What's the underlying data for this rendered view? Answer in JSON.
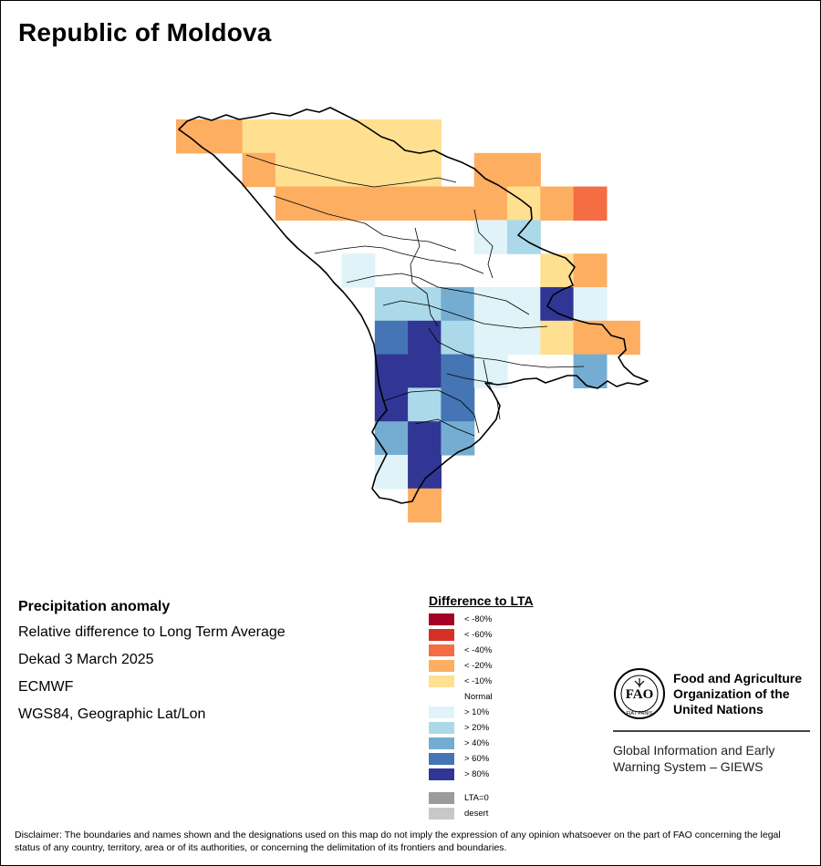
{
  "title": "Republic of Moldova",
  "info": {
    "heading": "Precipitation anomaly",
    "line1": "Relative difference to Long Term Average",
    "line2": "Dekad 3 March 2025",
    "line3": "ECMWF",
    "line4": "WGS84, Geographic Lat/Lon"
  },
  "legend": {
    "title": "Difference to LTA",
    "items": [
      {
        "label": "< -80%",
        "color": "#a50026"
      },
      {
        "label": "< -60%",
        "color": "#d73027"
      },
      {
        "label": "< -40%",
        "color": "#f46d43"
      },
      {
        "label": "< -20%",
        "color": "#fdae61"
      },
      {
        "label": "< -10%",
        "color": "#fee090"
      },
      {
        "label": "Normal",
        "color": "#ffffff"
      },
      {
        "label": "> 10%",
        "color": "#e0f3f8"
      },
      {
        "label": "> 20%",
        "color": "#abd9e9"
      },
      {
        "label": "> 40%",
        "color": "#74add1"
      },
      {
        "label": "> 60%",
        "color": "#4575b4"
      },
      {
        "label": "> 80%",
        "color": "#313695"
      }
    ],
    "extra": [
      {
        "label": "LTA=0",
        "color": "#9b9b9b"
      },
      {
        "label": "desert",
        "color": "#c8c8c8"
      }
    ]
  },
  "map_cells": [
    {
      "row": 0,
      "col": 0,
      "value": "< -20%"
    },
    {
      "row": 0,
      "col": 1,
      "value": "< -20%"
    },
    {
      "row": 0,
      "col": 2,
      "value": "< -10%"
    },
    {
      "row": 0,
      "col": 3,
      "value": "< -10%"
    },
    {
      "row": 0,
      "col": 4,
      "value": "< -10%"
    },
    {
      "row": 0,
      "col": 5,
      "value": "< -10%"
    },
    {
      "row": 0,
      "col": 6,
      "value": "< -10%"
    },
    {
      "row": 0,
      "col": 7,
      "value": "< -10%"
    },
    {
      "row": 1,
      "col": 2,
      "value": "< -20%"
    },
    {
      "row": 1,
      "col": 3,
      "value": "< -10%"
    },
    {
      "row": 1,
      "col": 4,
      "value": "< -10%"
    },
    {
      "row": 1,
      "col": 5,
      "value": "< -10%"
    },
    {
      "row": 1,
      "col": 6,
      "value": "< -10%"
    },
    {
      "row": 1,
      "col": 7,
      "value": "< -10%"
    },
    {
      "row": 1,
      "col": 9,
      "value": "< -20%"
    },
    {
      "row": 1,
      "col": 10,
      "value": "< -20%"
    },
    {
      "row": 2,
      "col": 3,
      "value": "< -20%"
    },
    {
      "row": 2,
      "col": 4,
      "value": "< -20%"
    },
    {
      "row": 2,
      "col": 5,
      "value": "< -20%"
    },
    {
      "row": 2,
      "col": 6,
      "value": "< -20%"
    },
    {
      "row": 2,
      "col": 7,
      "value": "< -20%"
    },
    {
      "row": 2,
      "col": 8,
      "value": "< -20%"
    },
    {
      "row": 2,
      "col": 9,
      "value": "< -20%"
    },
    {
      "row": 2,
      "col": 10,
      "value": "< -10%"
    },
    {
      "row": 2,
      "col": 11,
      "value": "< -20%"
    },
    {
      "row": 2,
      "col": 12,
      "value": "< -40%"
    },
    {
      "row": 3,
      "col": 9,
      "value": "> 10%"
    },
    {
      "row": 3,
      "col": 10,
      "value": "> 20%"
    },
    {
      "row": 4,
      "col": 5,
      "value": "> 10%"
    },
    {
      "row": 4,
      "col": 11,
      "value": "< -10%"
    },
    {
      "row": 4,
      "col": 12,
      "value": "< -20%"
    },
    {
      "row": 5,
      "col": 6,
      "value": "> 20%"
    },
    {
      "row": 5,
      "col": 7,
      "value": "> 20%"
    },
    {
      "row": 5,
      "col": 8,
      "value": "> 40%"
    },
    {
      "row": 5,
      "col": 9,
      "value": "> 10%"
    },
    {
      "row": 5,
      "col": 10,
      "value": "> 10%"
    },
    {
      "row": 5,
      "col": 11,
      "value": "> 80%"
    },
    {
      "row": 5,
      "col": 12,
      "value": "> 10%"
    },
    {
      "row": 6,
      "col": 6,
      "value": "> 60%"
    },
    {
      "row": 6,
      "col": 7,
      "value": "> 80%"
    },
    {
      "row": 6,
      "col": 8,
      "value": "> 20%"
    },
    {
      "row": 6,
      "col": 9,
      "value": "> 10%"
    },
    {
      "row": 6,
      "col": 10,
      "value": "> 10%"
    },
    {
      "row": 6,
      "col": 11,
      "value": "< -10%"
    },
    {
      "row": 6,
      "col": 12,
      "value": "< -20%"
    },
    {
      "row": 6,
      "col": 13,
      "value": "< -20%"
    },
    {
      "row": 7,
      "col": 6,
      "value": "> 80%"
    },
    {
      "row": 7,
      "col": 7,
      "value": "> 80%"
    },
    {
      "row": 7,
      "col": 8,
      "value": "> 60%"
    },
    {
      "row": 7,
      "col": 9,
      "value": "> 10%"
    },
    {
      "row": 7,
      "col": 12,
      "value": "> 40%"
    },
    {
      "row": 8,
      "col": 6,
      "value": "> 80%"
    },
    {
      "row": 8,
      "col": 7,
      "value": "> 20%"
    },
    {
      "row": 8,
      "col": 8,
      "value": "> 60%"
    },
    {
      "row": 9,
      "col": 6,
      "value": "> 40%"
    },
    {
      "row": 9,
      "col": 7,
      "value": "> 80%"
    },
    {
      "row": 9,
      "col": 8,
      "value": "> 40%"
    },
    {
      "row": 10,
      "col": 6,
      "value": "> 10%"
    },
    {
      "row": 10,
      "col": 7,
      "value": "> 80%"
    },
    {
      "row": 11,
      "col": 7,
      "value": "< -20%"
    }
  ],
  "fao": {
    "name_line1": "Food and Agriculture",
    "name_line2": "Organization of the",
    "name_line3": "United Nations",
    "logo_letters": "FAO",
    "logo_motto": "FIAT PANIS",
    "giews_line1": "Global Information and Early",
    "giews_line2": "Warning System – GIEWS"
  },
  "disclaimer": "Disclaimer: The boundaries and names shown and the designations used on this map do not imply the expression of any opinion whatsoever on the part of FAO concerning the legal status of any country, territory, area or of its authorities, or concerning the delimitation of its frontiers and boundaries."
}
